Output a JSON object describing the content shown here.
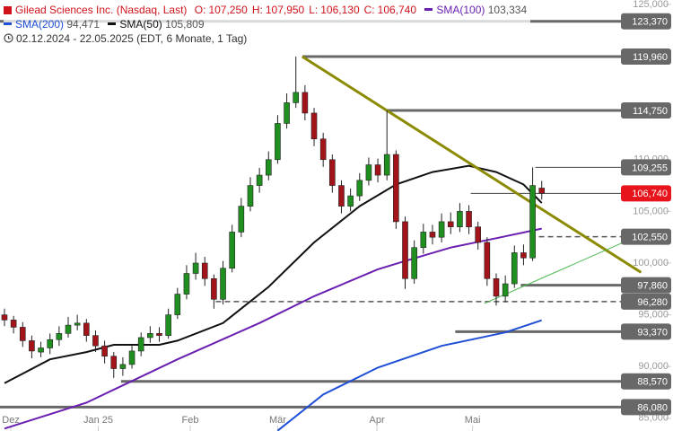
{
  "chart_data": {
    "type": "candlestick",
    "legend": {
      "title": "Gilead Sciences Inc. (Nasdaq, Last)",
      "quote": [
        {
          "label": "O:",
          "value_label": "107,250"
        },
        {
          "label": "H:",
          "value_label": "107,950"
        },
        {
          "label": "L:",
          "value_label": "106,130"
        },
        {
          "label": "C:",
          "value_label": "106,740"
        }
      ],
      "period": "02.12.2024 - 22.05.2025",
      "period_note": "(EDT, 6 Monate, 1 Tag)"
    },
    "up_color": "#1f8f1f",
    "down_color": "#a3141a",
    "ohlc": [
      [
        95.0,
        95.6,
        93.9,
        94.5
      ],
      [
        94.5,
        94.9,
        93.2,
        93.8
      ],
      [
        93.8,
        94.3,
        91.9,
        92.5
      ],
      [
        92.5,
        93.0,
        90.8,
        91.5
      ],
      [
        91.4,
        92.4,
        90.9,
        91.8
      ],
      [
        91.8,
        93.2,
        91.2,
        92.6
      ],
      [
        92.6,
        93.9,
        92.0,
        93.2
      ],
      [
        93.2,
        94.8,
        92.8,
        94.0
      ],
      [
        94.0,
        95.0,
        93.5,
        94.2
      ],
      [
        94.2,
        94.6,
        92.4,
        93.0
      ],
      [
        93.0,
        93.5,
        91.4,
        92.0
      ],
      [
        92.0,
        92.5,
        90.3,
        91.0
      ],
      [
        91.0,
        91.4,
        88.9,
        89.8
      ],
      [
        89.8,
        90.9,
        89.1,
        90.2
      ],
      [
        90.2,
        92.0,
        89.8,
        91.5
      ],
      [
        91.5,
        93.3,
        91.0,
        92.8
      ],
      [
        92.8,
        93.9,
        92.3,
        93.2
      ],
      [
        93.2,
        93.8,
        92.4,
        93.0
      ],
      [
        93.0,
        95.6,
        92.7,
        95.0
      ],
      [
        95.0,
        97.6,
        94.6,
        97.0
      ],
      [
        97.0,
        99.8,
        96.5,
        99.0
      ],
      [
        99.0,
        101.0,
        98.4,
        100.0
      ],
      [
        100.0,
        100.6,
        97.8,
        98.5
      ],
      [
        98.5,
        98.9,
        95.6,
        96.5
      ],
      [
        96.5,
        100.2,
        96.0,
        99.5
      ],
      [
        99.5,
        103.7,
        99.1,
        103.0
      ],
      [
        103.0,
        106.3,
        102.5,
        105.5
      ],
      [
        105.5,
        108.3,
        105.0,
        107.5
      ],
      [
        107.5,
        109.2,
        106.8,
        108.5
      ],
      [
        108.5,
        110.8,
        108.0,
        110.0
      ],
      [
        110.0,
        114.3,
        109.6,
        113.5
      ],
      [
        113.5,
        116.4,
        113.0,
        115.5
      ],
      [
        115.5,
        119.96,
        115.0,
        116.5
      ],
      [
        116.5,
        117.2,
        113.8,
        114.5
      ],
      [
        114.5,
        115.0,
        111.3,
        112.0
      ],
      [
        112.0,
        112.6,
        109.3,
        110.0
      ],
      [
        110.0,
        110.5,
        106.8,
        107.5
      ],
      [
        107.5,
        108.0,
        104.8,
        105.5
      ],
      [
        105.5,
        107.2,
        105.0,
        106.5
      ],
      [
        106.5,
        108.7,
        106.0,
        108.0
      ],
      [
        108.0,
        110.2,
        107.5,
        109.5
      ],
      [
        109.5,
        110.1,
        107.8,
        108.5
      ],
      [
        108.5,
        114.75,
        108.0,
        110.5
      ],
      [
        110.5,
        110.9,
        103.3,
        104.0
      ],
      [
        104.0,
        104.5,
        97.5,
        98.5
      ],
      [
        98.5,
        102.2,
        98.0,
        101.5
      ],
      [
        101.5,
        103.8,
        100.9,
        103.0
      ],
      [
        103.0,
        103.7,
        101.8,
        102.5
      ],
      [
        102.5,
        104.8,
        102.0,
        104.0
      ],
      [
        104.0,
        104.9,
        102.8,
        103.5
      ],
      [
        103.5,
        105.8,
        103.0,
        105.0
      ],
      [
        105.0,
        105.6,
        102.8,
        103.5
      ],
      [
        103.5,
        104.0,
        101.3,
        102.0
      ],
      [
        102.0,
        102.5,
        97.8,
        98.5
      ],
      [
        98.5,
        99.0,
        95.9,
        96.8
      ],
      [
        96.8,
        98.8,
        96.2,
        98.0
      ],
      [
        98.0,
        101.7,
        97.6,
        101.0
      ],
      [
        101.0,
        101.8,
        99.8,
        100.5
      ],
      [
        100.5,
        109.255,
        100.2,
        107.5
      ],
      [
        107.25,
        107.95,
        106.13,
        106.74
      ]
    ],
    "series": [
      {
        "name": "SMA(200)",
        "color": "#1f4fd6",
        "value_label": "94,471",
        "x": [
          30,
          35,
          41,
          48,
          55,
          59
        ],
        "values": [
          83.8,
          87.3,
          89.9,
          92.0,
          93.3,
          94.471
        ]
      },
      {
        "name": "SMA(50)",
        "color": "#111111",
        "value_label": "105,809",
        "x": [
          0,
          5,
          9,
          12,
          17,
          19,
          24,
          29,
          34,
          39,
          43,
          47,
          51,
          54,
          57,
          59
        ],
        "values": [
          88.4,
          90.7,
          91.4,
          92.1,
          92.1,
          92.5,
          94.2,
          97.7,
          102.0,
          105.5,
          107.6,
          108.8,
          109.4,
          108.8,
          107.6,
          105.809
        ]
      },
      {
        "name": "SMA(100)",
        "color": "#6a1fb0",
        "value_label": "103,334",
        "x": [
          0,
          9,
          19,
          28,
          34,
          41,
          44,
          49,
          54,
          59
        ],
        "values": [
          84.0,
          86.5,
          90.7,
          94.2,
          96.8,
          99.4,
          100.2,
          101.5,
          102.4,
          103.334
        ]
      }
    ],
    "trendlines": [
      {
        "color": "#8c8a00",
        "x": [
          32.7,
          69.9
        ],
        "values": [
          119.96,
          99.1
        ]
      },
      {
        "color": "#49b84a",
        "x": [
          52.7,
          69
        ],
        "values": [
          96.1,
          102.4
        ]
      }
    ],
    "levels": [
      {
        "value": 123.37,
        "label": "123,370",
        "from": -0.5,
        "style": "thick",
        "color": "#686868"
      },
      {
        "value": 119.96,
        "label": "119,960",
        "from": 32.7,
        "style": "thick",
        "color": "#686868"
      },
      {
        "value": 114.75,
        "label": "114,750",
        "from": 42,
        "style": "thick",
        "color": "#686868"
      },
      {
        "value": 109.255,
        "label": "109,255",
        "from": 58.3,
        "style": "thin",
        "color": "#686868"
      },
      {
        "value": 106.74,
        "label": "106,740",
        "from": 51.2,
        "style": "thin",
        "color": "#e8141c"
      },
      {
        "value": 102.55,
        "label": "102,550",
        "from": 57.7,
        "style": "dashed",
        "color": "#686868"
      },
      {
        "value": 97.86,
        "label": "97,860",
        "from": 56.7,
        "style": "thick",
        "color": "#686868"
      },
      {
        "value": 96.28,
        "label": "96,280",
        "from": 23.2,
        "style": "dashed",
        "color": "#686868"
      },
      {
        "value": 93.37,
        "label": "93,370",
        "from": 49.5,
        "style": "thick",
        "color": "#686868"
      },
      {
        "value": 88.57,
        "label": "88,570",
        "from": 12.8,
        "style": "thick",
        "color": "#686868"
      },
      {
        "value": 86.08,
        "label": "86,080",
        "from": -0.5,
        "style": "thick",
        "color": "#686868"
      }
    ],
    "xlim": [
      -0.49,
      67.5
    ],
    "ylim": [
      83.77,
      125.43
    ],
    "xticks": [
      {
        "value": 0.7,
        "label": "Dez"
      },
      {
        "value": 10.3,
        "label": "Jan 25"
      },
      {
        "value": 20.4,
        "label": "Feb"
      },
      {
        "value": 30,
        "label": "Mär"
      },
      {
        "value": 40.9,
        "label": "Apr"
      },
      {
        "value": 51.4,
        "label": "Mai"
      }
    ],
    "yticks": [
      {
        "value": 85,
        "label": "85,000"
      },
      {
        "value": 90,
        "label": "90,000"
      },
      {
        "value": 95,
        "label": "95,000"
      },
      {
        "value": 100,
        "label": "100,000"
      },
      {
        "value": 105,
        "label": "105,000"
      },
      {
        "value": 110,
        "label": "110,000"
      },
      {
        "value": 115,
        "label": "115,000"
      },
      {
        "value": 120,
        "label": "120,000"
      },
      {
        "value": 125,
        "label": "125,000"
      }
    ]
  }
}
